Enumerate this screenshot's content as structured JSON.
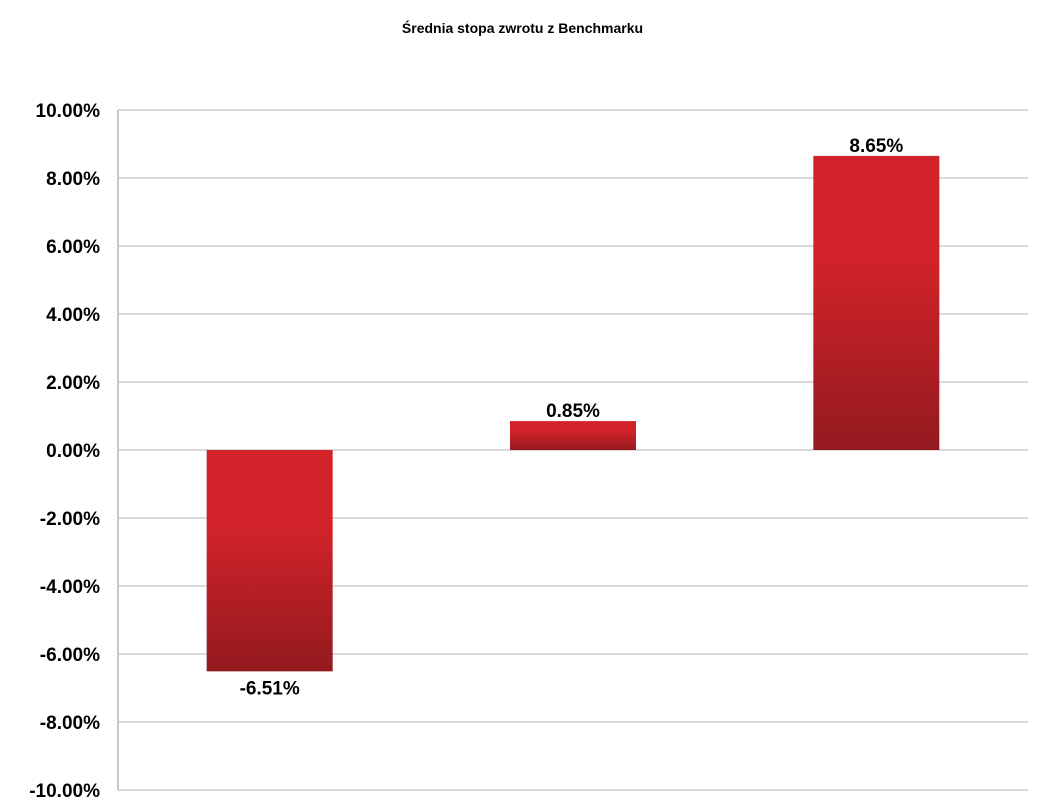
{
  "chart_data": {
    "type": "bar",
    "title": "Średnia stopa zwrotu z Benchmarku",
    "xlabel": "",
    "ylabel": "",
    "categories": [
      "",
      "",
      ""
    ],
    "values": [
      -6.51,
      0.85,
      8.65
    ],
    "data_labels": [
      "-6.51%",
      "0.85%",
      "8.65%"
    ],
    "ylim": [
      -10,
      10
    ],
    "yticks": [
      10,
      8,
      6,
      4,
      2,
      0,
      -2,
      -4,
      -6,
      -8,
      -10
    ],
    "ytick_labels": [
      "10.00%",
      "8.00%",
      "6.00%",
      "4.00%",
      "2.00%",
      "0.00%",
      "-2.00%",
      "-4.00%",
      "-6.00%",
      "-8.00%",
      "-10.00%"
    ],
    "grid": true,
    "legend": "none",
    "colors": {
      "bar_top": "#d12329",
      "bar_bottom": "#931a1f",
      "grid": "#d9d9d9",
      "axis": "#c8c8c8"
    }
  }
}
